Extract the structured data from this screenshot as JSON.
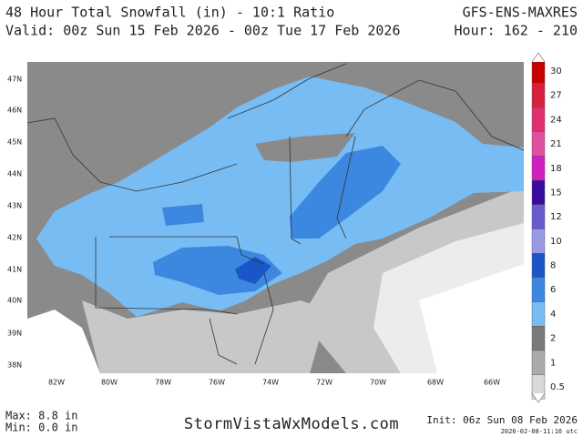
{
  "header": {
    "title": "48 Hour Total Snowfall (in) - 10:1 Ratio",
    "valid": "Valid: 00z Sun 15 Feb 2026 - 00z Tue 17 Feb 2026",
    "model": "GFS-ENS-MAXRES",
    "hour": "Hour: 162 - 210"
  },
  "map": {
    "lat_labels": [
      "47N",
      "46N",
      "45N",
      "44N",
      "43N",
      "42N",
      "41N",
      "40N",
      "39N",
      "38N"
    ],
    "lon_labels": [
      "82W",
      "80W",
      "78W",
      "76W",
      "74W",
      "72W",
      "70W",
      "68W",
      "66W"
    ]
  },
  "colorbar": {
    "labels": [
      "30",
      "27",
      "24",
      "21",
      "18",
      "15",
      "12",
      "10",
      "8",
      "6",
      "4",
      "2",
      "1",
      "0.5"
    ],
    "colors": [
      "#c80000",
      "#d8203c",
      "#e03070",
      "#e050a0",
      "#d020c0",
      "#3a0aa0",
      "#6a5ad0",
      "#9a9ae6",
      "#1a56c8",
      "#3c88e0",
      "#78bcf4",
      "#7a7a7a",
      "#ababab",
      "#d9d9d9"
    ]
  },
  "footer": {
    "max": "Max: 8.8 in",
    "min": "Min: 0.0 in",
    "site": "StormVistaWxModels.com",
    "init": "Init: 06z Sun 08 Feb 2026",
    "stamp": "2026-02-08-11:16 utc"
  }
}
